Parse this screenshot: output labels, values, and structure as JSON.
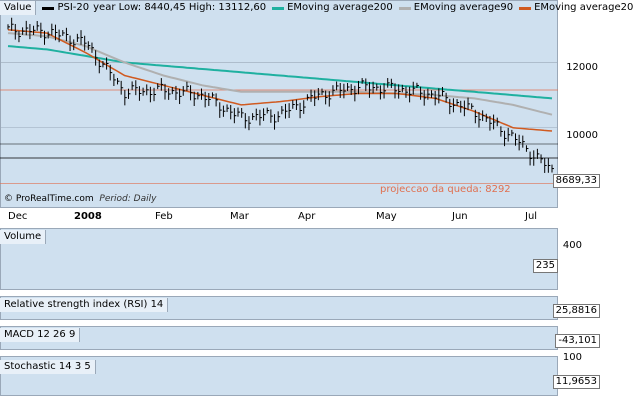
{
  "main": {
    "value_label": "Value",
    "series": [
      {
        "name": "PSI-20",
        "color": "#000000"
      },
      {
        "name": "year Low: 8440,45 High: 13112,60",
        "color": null
      },
      {
        "name": "EMoving average200",
        "color": "#1fb0a0"
      },
      {
        "name": "EMoving average90",
        "color": "#b0b0b0"
      },
      {
        "name": "EMoving average20",
        "color": "#d05a20"
      }
    ],
    "y_ticks": [
      "12000",
      "10000"
    ],
    "last_value": "8689,33",
    "annotation": "projeccao da queda: 8292",
    "footer_brand": "© ProRealTime.com",
    "footer_period": "Period: Daily"
  },
  "x_labels": [
    "Dec",
    "2008",
    "Feb",
    "Mar",
    "Apr",
    "May",
    "Jun",
    "Jul"
  ],
  "volume": {
    "title": "Volume",
    "y_tick": "400",
    "last_value": "235"
  },
  "rsi": {
    "title": "Relative strength index (RSI) 14",
    "last_value": "25,8816"
  },
  "macd": {
    "title": "MACD 12 26 9",
    "last_value": "-43,101"
  },
  "stoch": {
    "title": "Stochastic 14 3 5",
    "y_tick": "100",
    "last_value": "11,9653"
  },
  "colors": {
    "panel_bg": "#cfe0ef",
    "up": "#4fc24f",
    "down": "#e05050",
    "rsi": "#2030c0",
    "stoch_fast": "#1020d0",
    "stoch_slow": "#e02020"
  },
  "chart_data": {
    "type": "line",
    "x": [
      "Dec",
      "2008",
      "Feb",
      "Mar",
      "Apr",
      "May",
      "Jun",
      "Jul"
    ],
    "price_close": [
      13000,
      12950,
      12600,
      11100,
      11150,
      11000,
      10300,
      10400,
      11000,
      11250,
      11200,
      11000,
      10500,
      9700,
      8689
    ],
    "ema200": [
      12500,
      12400,
      12200,
      12000,
      11900,
      11800,
      11700,
      11600,
      11500,
      11400,
      11300,
      11200,
      11100,
      11000,
      10900
    ],
    "ema90": [
      12900,
      12800,
      12500,
      12000,
      11600,
      11300,
      11100,
      11100,
      11100,
      11100,
      11050,
      11000,
      10900,
      10700,
      10400
    ],
    "ema20": [
      13000,
      12900,
      12300,
      11600,
      11300,
      11000,
      10700,
      10800,
      10950,
      11050,
      11050,
      10900,
      10500,
      10000,
      9900
    ],
    "projection": 8292,
    "ylim": [
      8400,
      13300
    ]
  }
}
